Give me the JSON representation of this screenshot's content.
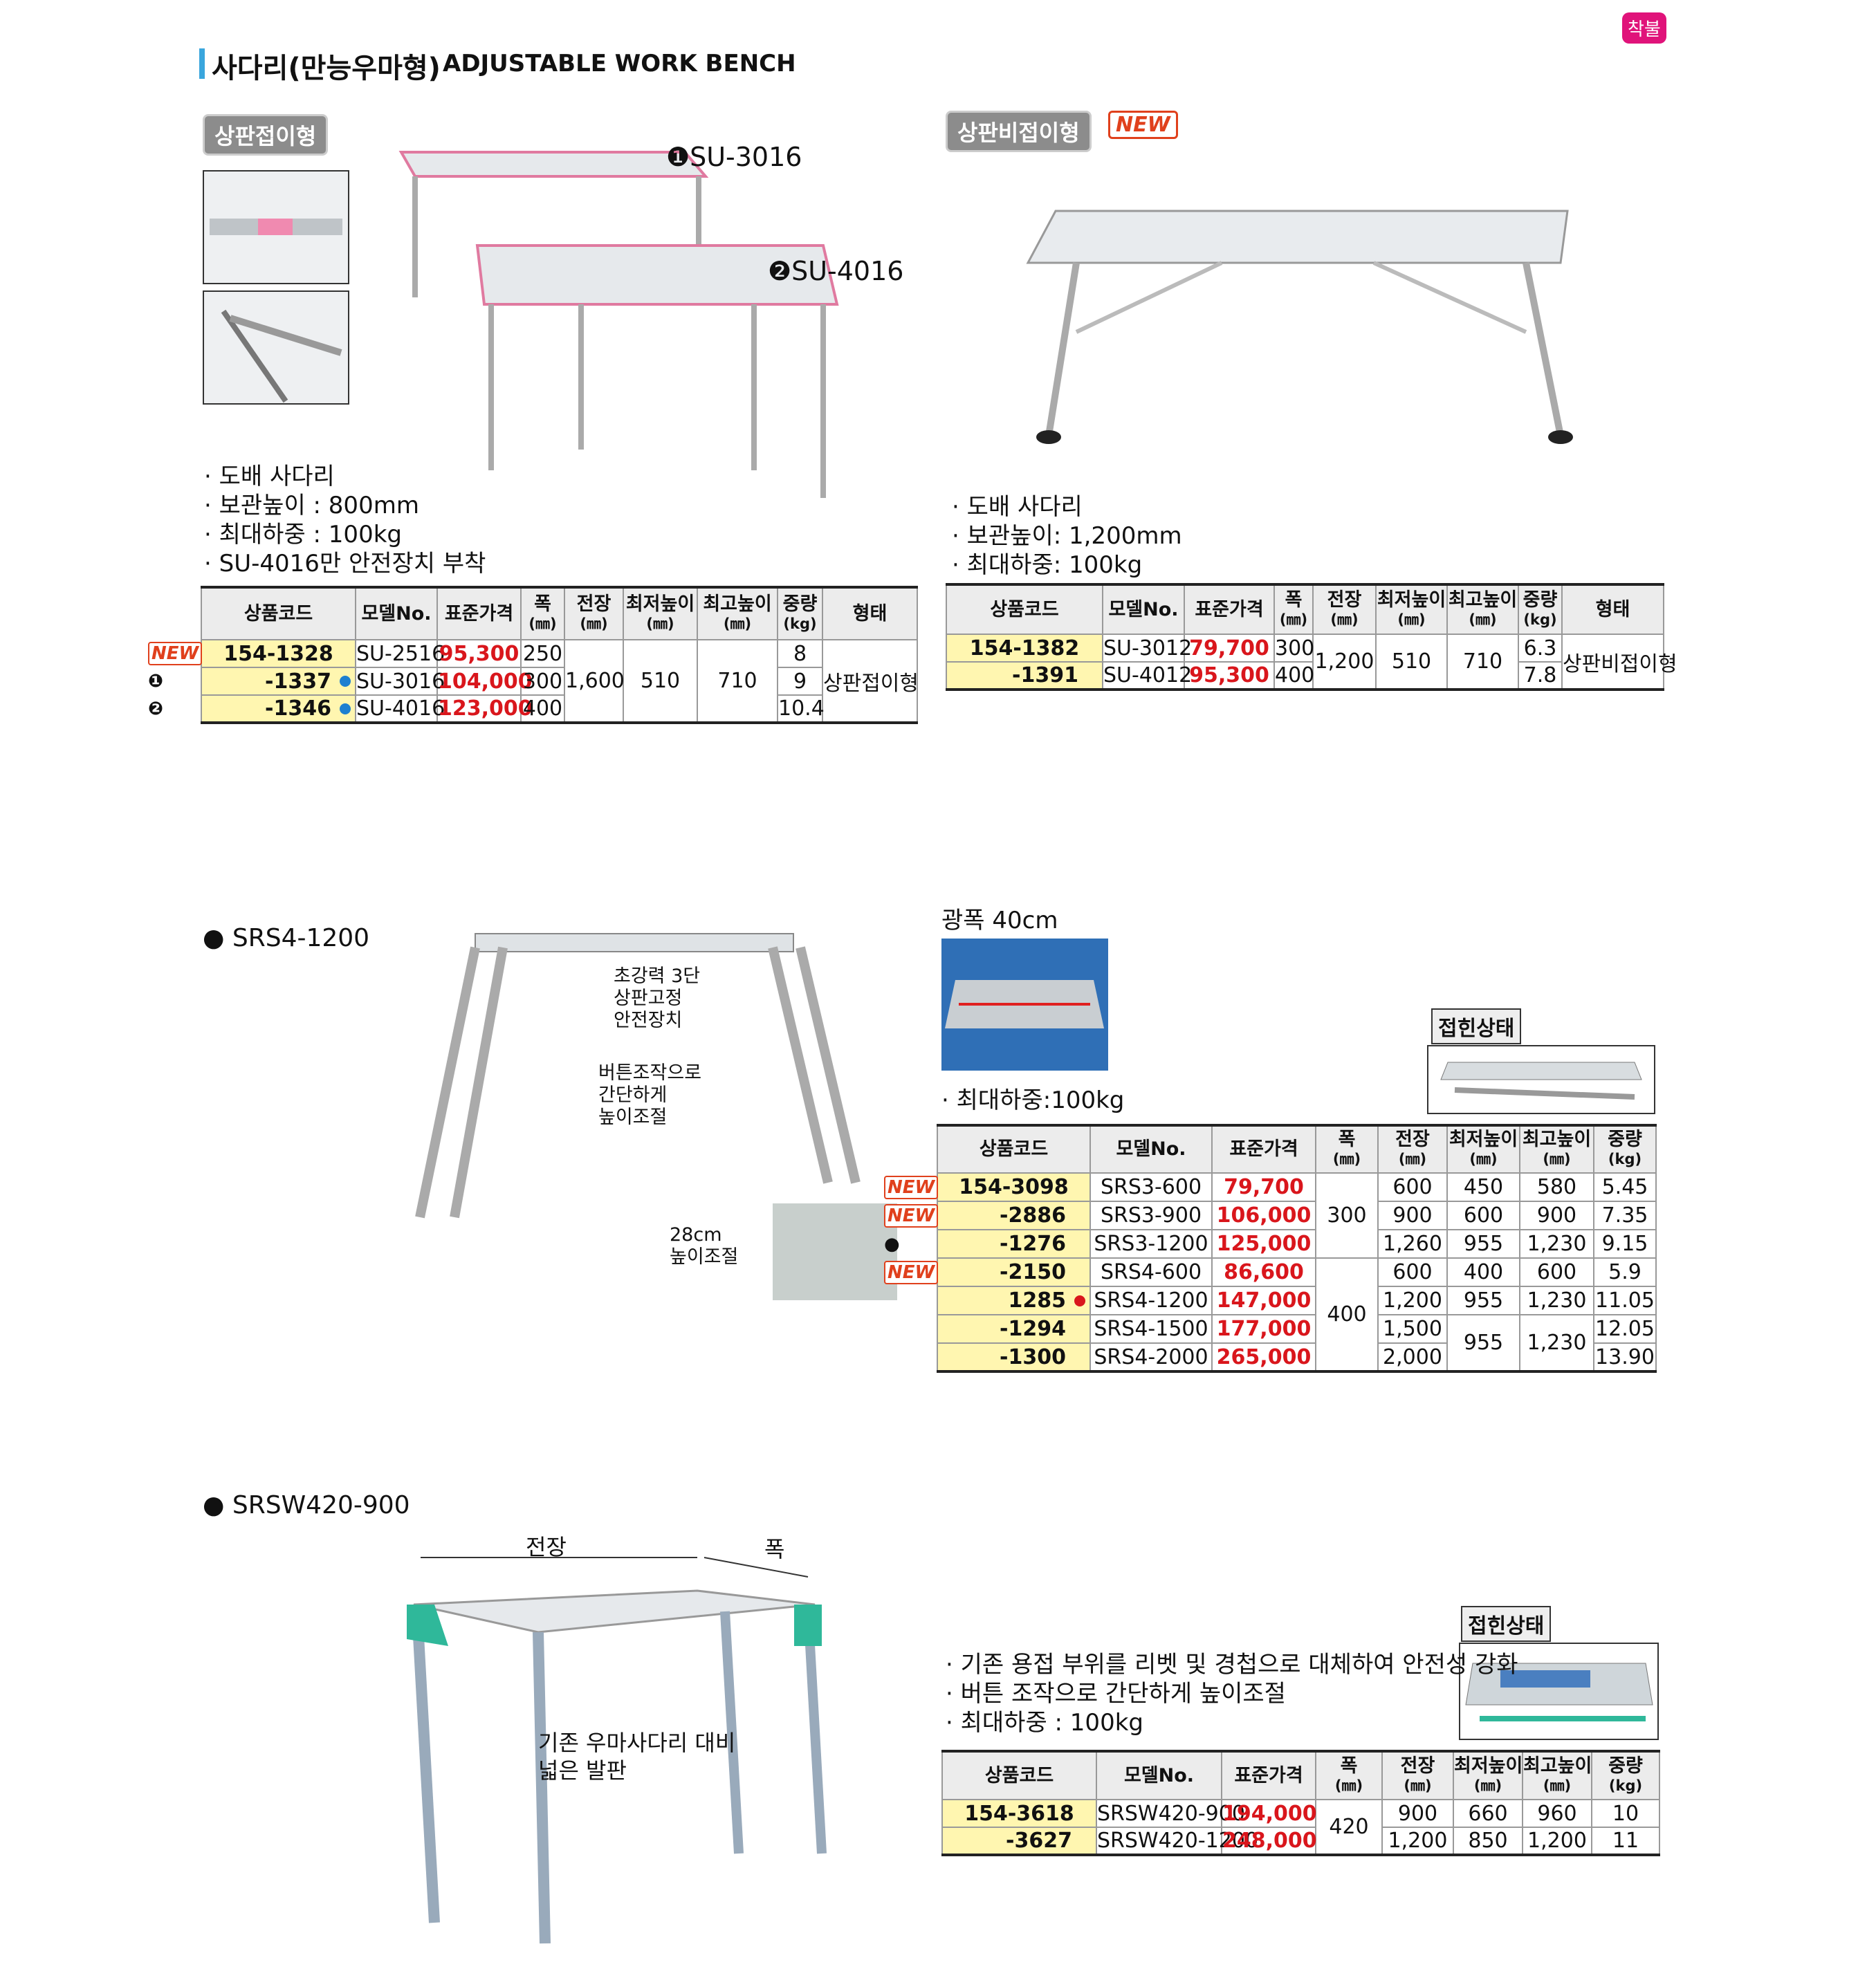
{
  "header": {
    "title_ko": "사다리(만능우마형)",
    "title_en": "ADJUSTABLE WORK BENCH",
    "tag": "착불"
  },
  "folding": {
    "label": "상판접이형",
    "models": [
      "❶SU-3016",
      "❷SU-4016"
    ],
    "notes": [
      "· 도배 사다리",
      "· 보관높이 : 800mm",
      "· 최대하중 : 100kg",
      "· SU-4016만 안전장치 부착"
    ],
    "table": {
      "header": [
        [
          "상품코드"
        ],
        [
          "모델No."
        ],
        [
          "표준가격"
        ],
        [
          "폭",
          "(㎜)"
        ],
        [
          "전장",
          "(㎜)"
        ],
        [
          "최저높이",
          "(㎜)"
        ],
        [
          "최고높이",
          "(㎜)"
        ],
        [
          "중량",
          "(kg)"
        ],
        [
          "형태"
        ]
      ],
      "rows": [
        {
          "badge": "NEW",
          "cells": [
            "154-1328",
            "SU-2516",
            "95,300",
            "250",
            "1,600",
            "510",
            "710",
            "8",
            "상판접이형"
          ]
        },
        {
          "badge": "❶",
          "cells": [
            "-1337",
            "SU-3016",
            "104,000",
            "300",
            "9"
          ]
        },
        {
          "badge": "❷",
          "cells": [
            "-1346",
            "SU-4016",
            "123,000",
            "400",
            "10.4"
          ]
        }
      ]
    }
  },
  "fixed": {
    "label": "상판비접이형",
    "badge": "NEW",
    "notes": [
      "· 도배 사다리",
      "· 보관높이: 1,200mm",
      "· 최대하중: 100kg"
    ],
    "table": {
      "header": [
        [
          "상품코드"
        ],
        [
          "모델No."
        ],
        [
          "표준가격"
        ],
        [
          "폭",
          "(㎜)"
        ],
        [
          "전장",
          "(㎜)"
        ],
        [
          "최저높이",
          "(㎜)"
        ],
        [
          "최고높이",
          "(㎜)"
        ],
        [
          "중량",
          "(kg)"
        ],
        [
          "형태"
        ]
      ],
      "rows": [
        {
          "cells": [
            "154-1382",
            "SU-3012",
            "79,700",
            "300",
            "1,200",
            "510",
            "710",
            "6.3",
            "상판비접이형"
          ]
        },
        {
          "cells": [
            "-1391",
            "SU-4012",
            "95,300",
            "400",
            "7.8"
          ]
        }
      ]
    }
  },
  "srs": {
    "heading": "● SRS4-1200",
    "callouts": [
      "초강력 3단",
      "상판고정",
      "안전장치",
      "버튼조작으로",
      "간단하게",
      "높이조절",
      "28cm",
      "높이조절"
    ],
    "wide": "광폭 40cm",
    "folded": "접힌상태",
    "note": "· 최대하중:100kg",
    "table": {
      "header": [
        [
          "상품코드"
        ],
        [
          "모델No."
        ],
        [
          "표준가격"
        ],
        [
          "폭",
          "(㎜)"
        ],
        [
          "전장",
          "(㎜)"
        ],
        [
          "최저높이",
          "(㎜)"
        ],
        [
          "최고높이",
          "(㎜)"
        ],
        [
          "중량",
          "(kg)"
        ]
      ],
      "rows": [
        {
          "badge": "NEW",
          "cells": [
            "154-3098",
            "SRS3-600",
            "79,700",
            "300",
            "600",
            "450",
            "580",
            "5.45"
          ]
        },
        {
          "badge": "NEW",
          "cells": [
            "-2886",
            "SRS3-900",
            "106,000",
            "900",
            "600",
            "900",
            "7.35"
          ]
        },
        {
          "badge": "●",
          "cells": [
            "-1276",
            "SRS3-1200",
            "125,000",
            "1,260",
            "955",
            "1,230",
            "9.15"
          ]
        },
        {
          "badge": "NEW",
          "cells": [
            "-2150",
            "SRS4-600",
            "86,600",
            "400",
            "600",
            "400",
            "600",
            "5.9"
          ]
        },
        {
          "cells": [
            "1285",
            "SRS4-1200",
            "147,000",
            "1,200",
            "955",
            "1,230",
            "11.05"
          ]
        },
        {
          "cells": [
            "-1294",
            "SRS4-1500",
            "177,000",
            "1,500",
            "955",
            "1,230",
            "12.05"
          ]
        },
        {
          "cells": [
            "-1300",
            "SRS4-2000",
            "265,000",
            "2,000",
            "13.90"
          ]
        }
      ]
    }
  },
  "srsw": {
    "heading": "● SRSW420-900",
    "dims": [
      "전장",
      "폭"
    ],
    "callout": [
      "기존 우마사다리 대비",
      "넓은 발판"
    ],
    "folded": "접힌상태",
    "notes": [
      "· 기존 용접 부위를 리벳 및 경첩으로 대체하여 안전성 강화",
      "· 버튼 조작으로 간단하게 높이조절",
      "· 최대하중 : 100kg"
    ],
    "table": {
      "header": [
        [
          "상품코드"
        ],
        [
          "모델No."
        ],
        [
          "표준가격"
        ],
        [
          "폭",
          "(㎜)"
        ],
        [
          "전장",
          "(㎜)"
        ],
        [
          "최저높이",
          "(㎜)"
        ],
        [
          "최고높이",
          "(㎜)"
        ],
        [
          "중량",
          "(kg)"
        ]
      ],
      "rows": [
        {
          "cells": [
            "154-3618",
            "SRSW420-900",
            "194,000",
            "420",
            "900",
            "660",
            "960",
            "10"
          ]
        },
        {
          "cells": [
            "-3627",
            "SRSW420-1200",
            "248,000",
            "1,200",
            "850",
            "1,200",
            "11"
          ]
        }
      ]
    }
  }
}
